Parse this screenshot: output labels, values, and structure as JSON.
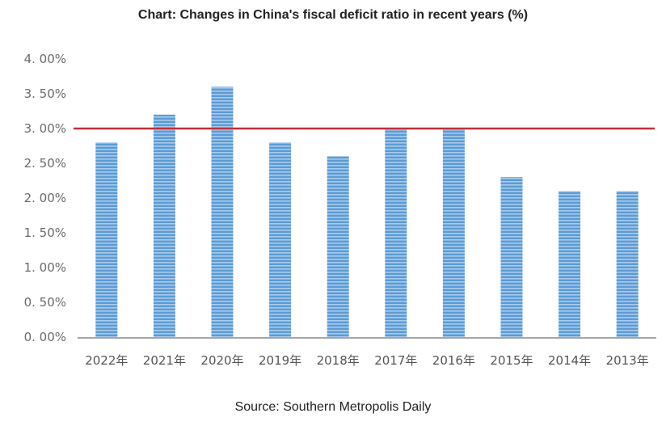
{
  "chart_data": {
    "type": "bar",
    "title": "Chart: Changes in China's fiscal deficit ratio in recent years (%)",
    "source": "Source: Southern Metropolis Daily",
    "xlabel": "",
    "ylabel": "",
    "categories": [
      "2022年",
      "2021年",
      "2020年",
      "2019年",
      "2018年",
      "2017年",
      "2016年",
      "2015年",
      "2014年",
      "2013年"
    ],
    "values": [
      2.8,
      3.2,
      3.6,
      2.8,
      2.6,
      3.0,
      3.0,
      2.3,
      2.1,
      2.1
    ],
    "ylim": [
      0,
      4
    ],
    "yticks": [
      0,
      0.5,
      1.0,
      1.5,
      2.0,
      2.5,
      3.0,
      3.5,
      4.0
    ],
    "ytick_labels": [
      "0. 00%",
      "0. 50%",
      "1. 00%",
      "1. 50%",
      "2. 00%",
      "2. 50%",
      "3. 00%",
      "3. 50%",
      "4. 00%"
    ],
    "reference_line": {
      "value": 3.0,
      "color": "#c0303a"
    },
    "bar_color": "#5b9bd5",
    "bar_stripe_color": "#a9cbec",
    "grid": false,
    "legend": "none"
  }
}
